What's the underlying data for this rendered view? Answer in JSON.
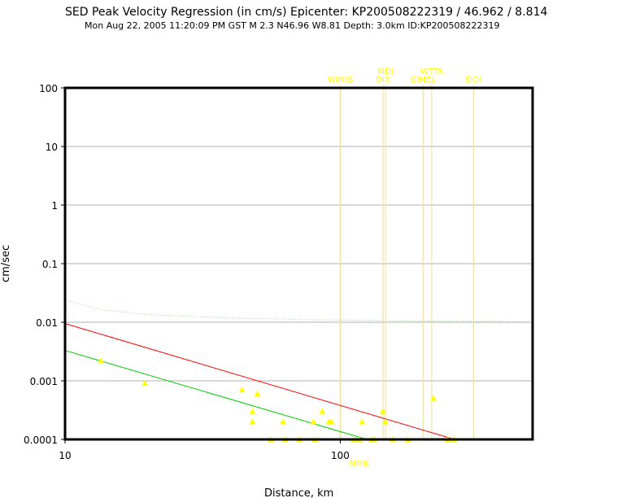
{
  "header": {
    "title": "SED Peak Velocity Regression (in cm/s) Epicenter: KP200508222319 / 46.962 / 8.814",
    "subtitle": "Mon Aug 22, 2005 11:20:09 PM GST   M 2.3   N46.96 W8.81   Depth: 3.0km   ID:KP200508222319"
  },
  "chart_data": {
    "type": "scatter",
    "title": "SED Peak Velocity Regression (in cm/s) Epicenter: KP200508222319 / 46.962 / 8.814",
    "xlabel": "Distance, km",
    "ylabel": "cm/sec",
    "x_scale": "log",
    "y_scale": "log",
    "xlim": [
      10,
      500
    ],
    "ylim": [
      0.0001,
      100
    ],
    "grid": true,
    "x_ticks": [
      {
        "v": 10,
        "label": "10"
      },
      {
        "v": 100,
        "label": "100"
      }
    ],
    "y_ticks": [
      {
        "v": 100,
        "label": "100"
      },
      {
        "v": 10,
        "label": "10"
      },
      {
        "v": 1,
        "label": "1"
      },
      {
        "v": 0.1,
        "label": "0.1"
      },
      {
        "v": 0.01,
        "label": "0.01"
      },
      {
        "v": 0.001,
        "label": "0.001"
      },
      {
        "v": 0.0001,
        "label": "0.0001"
      }
    ],
    "colors": {
      "points": "#ffff00",
      "red_line": "#ff0000",
      "green_line": "#00cc00",
      "dotted": "#99dd99",
      "station_line": "#eedd99",
      "label": "#ffff00"
    },
    "points": [
      {
        "x": 13.5,
        "y": 0.0022
      },
      {
        "x": 19.5,
        "y": 0.0009
      },
      {
        "x": 44,
        "y": 0.0007
      },
      {
        "x": 48,
        "y": 0.0003
      },
      {
        "x": 48,
        "y": 0.0002
      },
      {
        "x": 50,
        "y": 0.0006
      },
      {
        "x": 56,
        "y": 0.0001
      },
      {
        "x": 62,
        "y": 0.0002
      },
      {
        "x": 63,
        "y": 0.0001
      },
      {
        "x": 71,
        "y": 0.0001
      },
      {
        "x": 80,
        "y": 0.0002
      },
      {
        "x": 81,
        "y": 0.0001
      },
      {
        "x": 86,
        "y": 0.0003
      },
      {
        "x": 91,
        "y": 0.0002
      },
      {
        "x": 93,
        "y": 0.0002
      },
      {
        "x": 112,
        "y": 0.0001
      },
      {
        "x": 117,
        "y": 0.0001
      },
      {
        "x": 120,
        "y": 0.0002
      },
      {
        "x": 130,
        "y": 0.0001
      },
      {
        "x": 133,
        "y": 0.0001
      },
      {
        "x": 143,
        "y": 0.0003
      },
      {
        "x": 146,
        "y": 0.0002
      },
      {
        "x": 155,
        "y": 0.0001
      },
      {
        "x": 176,
        "y": 0.0001
      },
      {
        "x": 218,
        "y": 0.0005
      },
      {
        "x": 246,
        "y": 0.0001
      },
      {
        "x": 259,
        "y": 0.0001
      }
    ],
    "regression_red": [
      {
        "x": 10,
        "y": 0.0095
      },
      {
        "x": 260,
        "y": 0.0001
      }
    ],
    "regression_green": [
      {
        "x": 10,
        "y": 0.0033
      },
      {
        "x": 125,
        "y": 0.0001
      }
    ],
    "dotted_curve": [
      {
        "x": 10,
        "y": 0.024
      },
      {
        "x": 11.5,
        "y": 0.02
      },
      {
        "x": 14,
        "y": 0.016
      },
      {
        "x": 20,
        "y": 0.0135
      },
      {
        "x": 40,
        "y": 0.0118
      },
      {
        "x": 80,
        "y": 0.011
      },
      {
        "x": 200,
        "y": 0.0105
      },
      {
        "x": 470,
        "y": 0.0102
      }
    ],
    "stations": [
      {
        "name": "WIMIS",
        "x": 100,
        "row": 1
      },
      {
        "name": "MDI",
        "x": 146,
        "row": 0
      },
      {
        "name": "DIX",
        "x": 143,
        "row": 1
      },
      {
        "name": "GIMEL",
        "x": 200,
        "row": 1
      },
      {
        "name": "WTTA",
        "x": 215,
        "row": 0
      },
      {
        "name": "DOI",
        "x": 305,
        "row": 1
      }
    ],
    "below_axis_labels": [
      {
        "name": "MMK",
        "x": 117
      }
    ]
  }
}
